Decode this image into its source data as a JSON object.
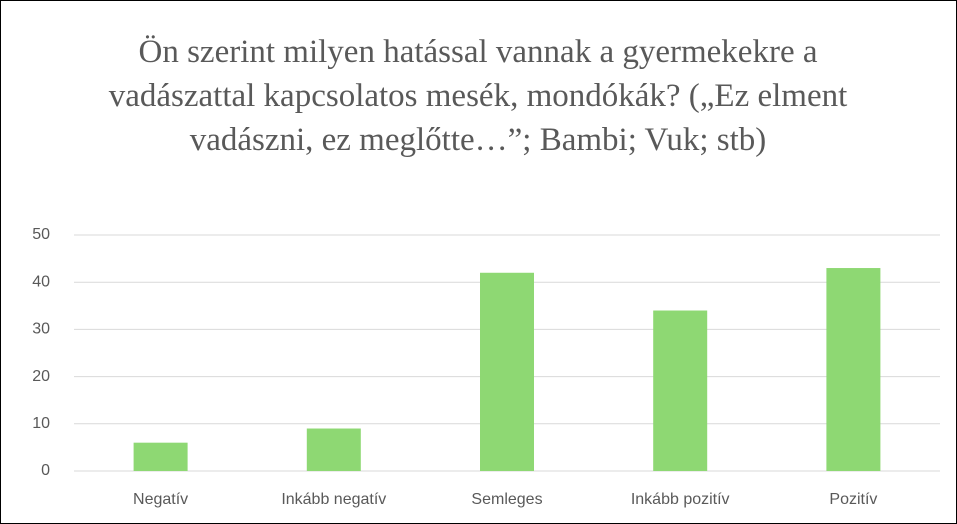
{
  "chart_data": {
    "type": "bar",
    "title": "Ön szerint milyen hatással vannak a gyermekekre a vadászattal kapcsolatos mesék, mondókák? („Ez elment vadászni, ez meglőtte…”; Bambi; Vuk; stb)",
    "categories": [
      "Negatív",
      "Inkább negatív",
      "Semleges",
      "Inkább pozitív",
      "Pozitív"
    ],
    "values": [
      6,
      9,
      42,
      34,
      43
    ],
    "color": "#8ed873",
    "ylim": [
      0,
      50
    ],
    "yticks": [
      0,
      10,
      20,
      30,
      40,
      50
    ],
    "grid": true
  }
}
